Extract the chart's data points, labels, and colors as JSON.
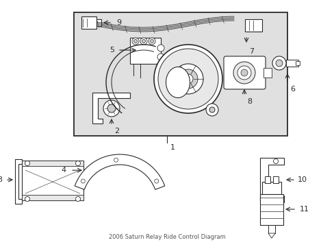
{
  "title": "2006 Saturn Relay Ride Control Diagram",
  "bg_color": "#ffffff",
  "box_bg": "#e0e0e0",
  "line_color": "#2a2a2a",
  "fig_w": 4.89,
  "fig_h": 3.6,
  "dpi": 100
}
